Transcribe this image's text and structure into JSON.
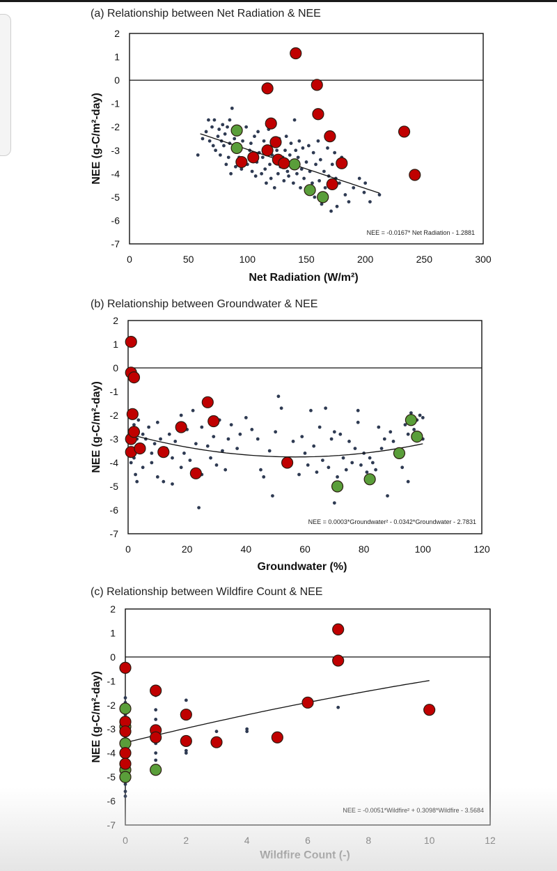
{
  "chart_data": [
    {
      "type": "scatter",
      "title": "(a) Relationship between Net Radiation & NEE",
      "xlabel": "Net Radiation (W/m²)",
      "ylabel": "NEE (g-C/m²-day)",
      "xlim": [
        0,
        300
      ],
      "ylim": [
        -7,
        2
      ],
      "xticks": [
        "0",
        "50",
        "100",
        "150",
        "200",
        "250",
        "300"
      ],
      "yticks": [
        "2",
        "1",
        "0",
        "-1",
        "-2",
        "-3",
        "-4",
        "-5",
        "-6",
        "-7"
      ],
      "equation": "NEE = -0.0167* Net Radiation - 1.2881",
      "fit": {
        "kind": "linear",
        "a": -0.0167,
        "b": -1.2881,
        "xmin": 60,
        "xmax": 212
      },
      "background_points": [
        [
          58,
          -3.2
        ],
        [
          62,
          -2.5
        ],
        [
          65,
          -2.2
        ],
        [
          67,
          -1.7
        ],
        [
          68,
          -2.6
        ],
        [
          70,
          -2.0
        ],
        [
          71,
          -2.8
        ],
        [
          72,
          -1.7
        ],
        [
          73,
          -3.0
        ],
        [
          75,
          -2.4
        ],
        [
          76,
          -2.1
        ],
        [
          77,
          -3.2
        ],
        [
          78,
          -2.6
        ],
        [
          79,
          -1.9
        ],
        [
          80,
          -2.8
        ],
        [
          81,
          -2.3
        ],
        [
          82,
          -3.6
        ],
        [
          83,
          -2.0
        ],
        [
          84,
          -3.3
        ],
        [
          85,
          -1.7
        ],
        [
          85,
          -2.7
        ],
        [
          86,
          -4.0
        ],
        [
          87,
          -1.2
        ],
        [
          88,
          -3.0
        ],
        [
          89,
          -2.5
        ],
        [
          90,
          -3.7
        ],
        [
          92,
          -2.2
        ],
        [
          93,
          -3.3
        ],
        [
          94,
          -2.9
        ],
        [
          95,
          -3.8
        ],
        [
          96,
          -2.6
        ],
        [
          98,
          -3.4
        ],
        [
          99,
          -2.0
        ],
        [
          100,
          -3.6
        ],
        [
          102,
          -3.0
        ],
        [
          103,
          -2.7
        ],
        [
          104,
          -3.9
        ],
        [
          105,
          -3.2
        ],
        [
          106,
          -2.4
        ],
        [
          107,
          -4.1
        ],
        [
          108,
          -3.5
        ],
        [
          109,
          -2.2
        ],
        [
          110,
          -3.1
        ],
        [
          112,
          -4.0
        ],
        [
          113,
          -3.3
        ],
        [
          114,
          -2.6
        ],
        [
          115,
          -3.8
        ],
        [
          116,
          -4.4
        ],
        [
          117,
          -3.0
        ],
        [
          118,
          -2.1
        ],
        [
          119,
          -3.6
        ],
        [
          120,
          -4.2
        ],
        [
          121,
          -3.2
        ],
        [
          122,
          -2.8
        ],
        [
          123,
          -4.6
        ],
        [
          124,
          -3.5
        ],
        [
          125,
          -3.0
        ],
        [
          126,
          -4.0
        ],
        [
          127,
          -2.5
        ],
        [
          128,
          -3.7
        ],
        [
          130,
          -3.3
        ],
        [
          131,
          -4.3
        ],
        [
          132,
          -3.0
        ],
        [
          133,
          -2.4
        ],
        [
          134,
          -3.9
        ],
        [
          135,
          -4.1
        ],
        [
          136,
          -3.2
        ],
        [
          137,
          -2.7
        ],
        [
          138,
          -3.5
        ],
        [
          139,
          -4.4
        ],
        [
          140,
          -1.7
        ],
        [
          141,
          -3.0
        ],
        [
          142,
          -4.0
        ],
        [
          143,
          -3.3
        ],
        [
          144,
          -2.6
        ],
        [
          145,
          -4.6
        ],
        [
          146,
          -3.8
        ],
        [
          147,
          -2.9
        ],
        [
          148,
          -4.2
        ],
        [
          150,
          -3.5
        ],
        [
          151,
          -4.8
        ],
        [
          152,
          -2.8
        ],
        [
          153,
          -3.9
        ],
        [
          155,
          -4.4
        ],
        [
          156,
          -3.1
        ],
        [
          157,
          -5.0
        ],
        [
          158,
          -3.6
        ],
        [
          160,
          -2.6
        ],
        [
          161,
          -4.3
        ],
        [
          162,
          -3.4
        ],
        [
          163,
          -5.3
        ],
        [
          165,
          -3.9
        ],
        [
          166,
          -4.6
        ],
        [
          168,
          -2.9
        ],
        [
          169,
          -4.1
        ],
        [
          171,
          -5.6
        ],
        [
          172,
          -3.6
        ],
        [
          174,
          -3.1
        ],
        [
          175,
          -4.2
        ],
        [
          176,
          -5.4
        ],
        [
          178,
          -4.4
        ],
        [
          180,
          -3.3
        ],
        [
          183,
          -4.9
        ],
        [
          186,
          -5.2
        ],
        [
          190,
          -4.6
        ],
        [
          195,
          -4.2
        ],
        [
          199,
          -4.8
        ],
        [
          200,
          -4.4
        ],
        [
          204,
          -5.2
        ],
        [
          212,
          -4.9
        ]
      ],
      "red_points": [
        [
          95,
          -3.5
        ],
        [
          105,
          -3.3
        ],
        [
          117,
          -0.35
        ],
        [
          117,
          -3.0
        ],
        [
          120,
          -1.85
        ],
        [
          124,
          -2.65
        ],
        [
          126,
          -3.4
        ],
        [
          131,
          -3.55
        ],
        [
          141,
          1.15
        ],
        [
          159,
          -0.2
        ],
        [
          160,
          -1.45
        ],
        [
          170,
          -2.4
        ],
        [
          172,
          -4.45
        ],
        [
          180,
          -3.55
        ],
        [
          233,
          -2.2
        ],
        [
          242,
          -4.05
        ]
      ],
      "green_points": [
        [
          91,
          -2.15
        ],
        [
          91,
          -2.9
        ],
        [
          140,
          -3.6
        ],
        [
          153,
          -4.7
        ],
        [
          164,
          -5.0
        ]
      ]
    },
    {
      "type": "scatter",
      "title": "(b) Relationship between Groundwater & NEE",
      "xlabel": "Groundwater (%)",
      "ylabel": "NEE (g-C/m²-day)",
      "xlim": [
        0,
        120
      ],
      "ylim": [
        -7,
        2
      ],
      "xticks": [
        "0",
        "20",
        "40",
        "60",
        "80",
        "100",
        "120"
      ],
      "yticks": [
        "2",
        "1",
        "0",
        "-1",
        "-2",
        "-3",
        "-4",
        "-5",
        "-6",
        "-7"
      ],
      "equation": "NEE = 0.0003*Groundwater² - 0.0342*Groundwater - 2.7831",
      "fit": {
        "kind": "poly2",
        "a": 0.0003,
        "b": -0.0342,
        "c": -2.7831,
        "xmin": 0,
        "xmax": 100
      },
      "background_points": [
        [
          0.5,
          -3.4
        ],
        [
          1,
          -4.0
        ],
        [
          1,
          -2.6
        ],
        [
          1.5,
          -3.1
        ],
        [
          2,
          -3.8
        ],
        [
          2,
          -2.4
        ],
        [
          2.5,
          -4.5
        ],
        [
          3,
          -4.8
        ],
        [
          3,
          -3.0
        ],
        [
          3.5,
          -2.2
        ],
        [
          4,
          -3.5
        ],
        [
          5,
          -2.8
        ],
        [
          5,
          -4.2
        ],
        [
          6,
          -3.0
        ],
        [
          7,
          -2.5
        ],
        [
          8,
          -3.6
        ],
        [
          8,
          -4.0
        ],
        [
          9,
          -3.2
        ],
        [
          10,
          -2.3
        ],
        [
          10,
          -4.6
        ],
        [
          11,
          -3.0
        ],
        [
          12,
          -4.8
        ],
        [
          13,
          -3.4
        ],
        [
          14,
          -2.8
        ],
        [
          15,
          -3.8
        ],
        [
          15,
          -4.9
        ],
        [
          16,
          -3.1
        ],
        [
          18,
          -2.0
        ],
        [
          18,
          -4.2
        ],
        [
          19,
          -3.6
        ],
        [
          20,
          -2.6
        ],
        [
          21,
          -3.9
        ],
        [
          22,
          -1.8
        ],
        [
          23,
          -3.2
        ],
        [
          24,
          -5.9
        ],
        [
          25,
          -4.5
        ],
        [
          25,
          -2.5
        ],
        [
          27,
          -3.3
        ],
        [
          28,
          -3.8
        ],
        [
          29,
          -2.9
        ],
        [
          30,
          -4.1
        ],
        [
          31,
          -2.2
        ],
        [
          32,
          -3.5
        ],
        [
          33,
          -4.3
        ],
        [
          34,
          -3.0
        ],
        [
          35,
          -2.4
        ],
        [
          37,
          -3.4
        ],
        [
          38,
          -2.8
        ],
        [
          40,
          -2.1
        ],
        [
          42,
          -2.6
        ],
        [
          44,
          -3.0
        ],
        [
          45,
          -4.3
        ],
        [
          46,
          -4.6
        ],
        [
          48,
          -3.5
        ],
        [
          49,
          -5.4
        ],
        [
          50,
          -2.7
        ],
        [
          51,
          -1.2
        ],
        [
          52,
          -1.7
        ],
        [
          53,
          -3.9
        ],
        [
          55,
          -4.0
        ],
        [
          56,
          -3.1
        ],
        [
          58,
          -4.5
        ],
        [
          59,
          -2.9
        ],
        [
          60,
          -3.6
        ],
        [
          61,
          -4.1
        ],
        [
          62,
          -1.8
        ],
        [
          63,
          -3.3
        ],
        [
          64,
          -4.4
        ],
        [
          65,
          -2.5
        ],
        [
          66,
          -3.9
        ],
        [
          67,
          -1.7
        ],
        [
          68,
          -4.2
        ],
        [
          69,
          -3.0
        ],
        [
          70,
          -5.7
        ],
        [
          70,
          -2.7
        ],
        [
          71,
          -4.6
        ],
        [
          72,
          -2.8
        ],
        [
          73,
          -3.8
        ],
        [
          74,
          -4.3
        ],
        [
          75,
          -3.1
        ],
        [
          76,
          -4.0
        ],
        [
          77,
          -3.4
        ],
        [
          78,
          -2.3
        ],
        [
          78,
          -1.8
        ],
        [
          79,
          -4.1
        ],
        [
          80,
          -3.6
        ],
        [
          81,
          -4.4
        ],
        [
          82,
          -3.8
        ],
        [
          83,
          -4.0
        ],
        [
          84,
          -4.3
        ],
        [
          85,
          -2.5
        ],
        [
          86,
          -3.4
        ],
        [
          87,
          -3.0
        ],
        [
          88,
          -5.4
        ],
        [
          89,
          -2.7
        ],
        [
          90,
          -3.1
        ],
        [
          91,
          -3.5
        ],
        [
          93,
          -4.2
        ],
        [
          94,
          -2.4
        ],
        [
          95,
          -4.8
        ],
        [
          95,
          -2.8
        ],
        [
          96,
          -1.9
        ],
        [
          97,
          -2.6
        ],
        [
          98,
          -2.2
        ],
        [
          99,
          -2.0
        ],
        [
          100,
          -3.0
        ],
        [
          100,
          -2.1
        ]
      ],
      "red_points": [
        [
          1,
          1.1
        ],
        [
          1,
          -0.2
        ],
        [
          1,
          -3.0
        ],
        [
          1,
          -3.55
        ],
        [
          1.5,
          -1.95
        ],
        [
          2,
          -0.4
        ],
        [
          2,
          -2.7
        ],
        [
          4,
          -3.4
        ],
        [
          12,
          -3.55
        ],
        [
          18,
          -2.5
        ],
        [
          23,
          -4.45
        ],
        [
          27,
          -1.45
        ],
        [
          29,
          -2.25
        ],
        [
          54,
          -4.0
        ]
      ],
      "green_points": [
        [
          71,
          -5.0
        ],
        [
          82,
          -4.7
        ],
        [
          92,
          -3.6
        ],
        [
          96,
          -2.2
        ],
        [
          98,
          -2.9
        ]
      ]
    },
    {
      "type": "scatter",
      "title": "(c) Relationship between Wildfire Count & NEE",
      "xlabel": "Wildfire Count (-)",
      "ylabel": "NEE (g-C/m²-day)",
      "xlim": [
        0,
        12
      ],
      "ylim": [
        -7,
        2
      ],
      "xticks": [
        "0",
        "2",
        "4",
        "6",
        "8",
        "10",
        "12"
      ],
      "yticks": [
        "2",
        "1",
        "0",
        "-1",
        "-2",
        "-3",
        "-4",
        "-5",
        "-6",
        "-7"
      ],
      "equation": "NEE = -0.0051*Wildfire² + 0.3098*Wildfire - 3.5684",
      "fit": {
        "kind": "poly2",
        "a": -0.0051,
        "b": 0.3098,
        "c": -3.5684,
        "xmin": 0,
        "xmax": 10
      },
      "background_points": [
        [
          0,
          -1.7
        ],
        [
          0,
          -1.9
        ],
        [
          0,
          -2.1
        ],
        [
          0,
          -2.4
        ],
        [
          0,
          -2.6
        ],
        [
          0,
          -2.8
        ],
        [
          0,
          -3.0
        ],
        [
          0,
          -3.1
        ],
        [
          0,
          -3.3
        ],
        [
          0,
          -3.5
        ],
        [
          0,
          -3.7
        ],
        [
          0,
          -3.9
        ],
        [
          0,
          -4.1
        ],
        [
          0,
          -4.3
        ],
        [
          0,
          -4.6
        ],
        [
          0,
          -4.8
        ],
        [
          0,
          -5.0
        ],
        [
          0,
          -5.3
        ],
        [
          0,
          -5.6
        ],
        [
          0,
          -5.8
        ],
        [
          1,
          -1.6
        ],
        [
          1,
          -2.2
        ],
        [
          1,
          -2.6
        ],
        [
          1,
          -2.9
        ],
        [
          1,
          -3.2
        ],
        [
          1,
          -3.6
        ],
        [
          1,
          -4.0
        ],
        [
          1,
          -4.3
        ],
        [
          1,
          -4.7
        ],
        [
          2,
          -1.8
        ],
        [
          2,
          -2.5
        ],
        [
          2,
          -3.6
        ],
        [
          2,
          -3.9
        ],
        [
          2,
          -4.0
        ],
        [
          3,
          -3.1
        ],
        [
          3,
          -3.5
        ],
        [
          4,
          -3.0
        ],
        [
          4,
          -3.1
        ],
        [
          7,
          -2.1
        ]
      ],
      "red_points": [
        [
          0,
          -0.45
        ],
        [
          0,
          -2.7
        ],
        [
          0,
          -3.1
        ],
        [
          0,
          -4.0
        ],
        [
          0,
          -4.45
        ],
        [
          1,
          -1.4
        ],
        [
          1,
          -3.05
        ],
        [
          1,
          -3.35
        ],
        [
          2,
          -2.4
        ],
        [
          2,
          -3.5
        ],
        [
          3,
          -3.55
        ],
        [
          5,
          -3.35
        ],
        [
          6,
          -1.9
        ],
        [
          7,
          1.15
        ],
        [
          7,
          -0.15
        ],
        [
          10,
          -2.2
        ]
      ],
      "green_points": [
        [
          0,
          -2.15
        ],
        [
          0,
          -2.9
        ],
        [
          0,
          -3.6
        ],
        [
          0,
          -4.7
        ],
        [
          0,
          -5.0
        ],
        [
          1,
          -4.7
        ]
      ]
    }
  ],
  "colors": {
    "red_fill": "#c00000",
    "green_fill": "#5a9e3a",
    "dot_fill": "#2e3a52",
    "marker_stroke": "#2a1a10"
  }
}
